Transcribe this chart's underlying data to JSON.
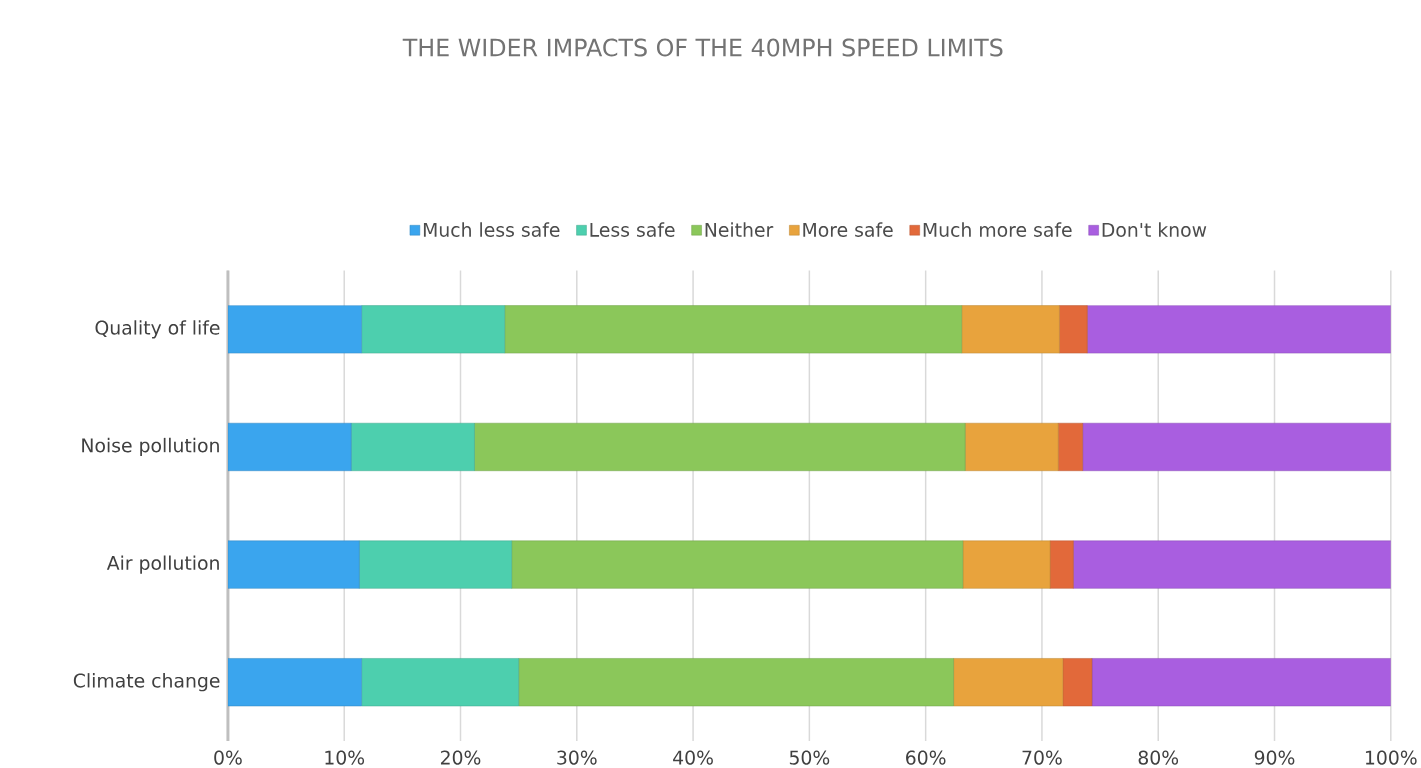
{
  "chart_data": {
    "type": "bar",
    "orientation": "horizontal",
    "stacked": true,
    "title": "THE WIDER IMPACTS OF THE 40MPH SPEED LIMITS",
    "categories": [
      "Quality of life",
      "Noise pollution",
      "Air pollution",
      "Climate change"
    ],
    "series": [
      {
        "name": "Much less safe",
        "color": "#3aa5ee",
        "values": [
          11.5,
          10.6,
          11.3,
          11.5
        ]
      },
      {
        "name": "Less safe",
        "color": "#4dcfae",
        "values": [
          12.3,
          10.6,
          13.1,
          13.5
        ]
      },
      {
        "name": "Neither",
        "color": "#8bc75a",
        "values": [
          39.3,
          42.2,
          38.8,
          37.4
        ]
      },
      {
        "name": "More safe",
        "color": "#e8a33d",
        "values": [
          8.4,
          8.0,
          7.5,
          9.4
        ]
      },
      {
        "name": "Much more safe",
        "color": "#e2693a",
        "values": [
          2.4,
          2.1,
          2.0,
          2.5
        ]
      },
      {
        "name": "Don't know",
        "color": "#a95ee0",
        "values": [
          26.1,
          26.5,
          27.3,
          25.7
        ]
      }
    ],
    "xlim": [
      0,
      100
    ],
    "xticks": [
      {
        "value": 0,
        "label": "0%"
      },
      {
        "value": 10,
        "label": "10%"
      },
      {
        "value": 20,
        "label": "20%"
      },
      {
        "value": 30,
        "label": "30%"
      },
      {
        "value": 40,
        "label": "40%"
      },
      {
        "value": 50,
        "label": "50%"
      },
      {
        "value": 60,
        "label": "60%"
      },
      {
        "value": 70,
        "label": "70%"
      },
      {
        "value": 80,
        "label": "80%"
      },
      {
        "value": 90,
        "label": "90%"
      },
      {
        "value": 100,
        "label": "100%"
      }
    ],
    "grid": "x",
    "legend": "top"
  }
}
